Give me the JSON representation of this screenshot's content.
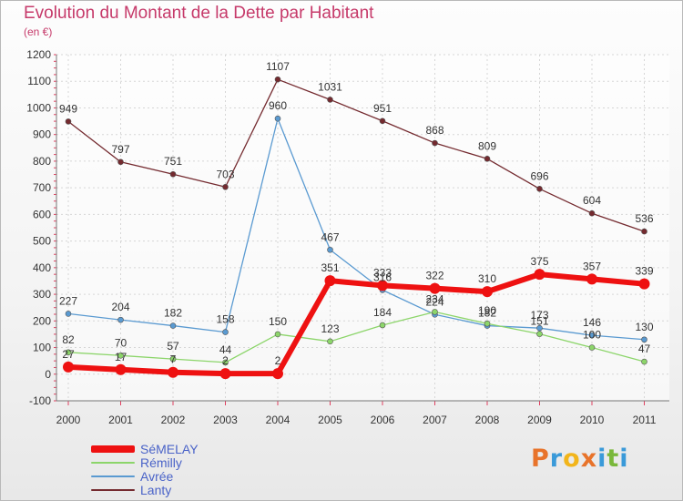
{
  "title": "Evolution du Montant de la Dette par Habitant",
  "subtitle": "(en €)",
  "logo": {
    "text": "Proxiti",
    "colors": [
      "#e8732a",
      "#3a9ad9",
      "#f2b51b",
      "#e8732a",
      "#3a9ad9",
      "#7ab83b",
      "#3a9ad9"
    ]
  },
  "chart_data": {
    "type": "line",
    "categories": [
      "2000",
      "2001",
      "2002",
      "2003",
      "2004",
      "2005",
      "2006",
      "2007",
      "2008",
      "2009",
      "2010",
      "2011"
    ],
    "ylim": [
      -100,
      1200
    ],
    "yticks": [
      -100,
      0,
      100,
      200,
      300,
      400,
      500,
      600,
      700,
      800,
      900,
      1000,
      1100,
      1200
    ],
    "grid": true,
    "legend_position": "bottom-left",
    "series": [
      {
        "name": "Lanty",
        "color": "#742a2f",
        "values": [
          949,
          797,
          751,
          703,
          1107,
          1031,
          951,
          868,
          809,
          696,
          604,
          536
        ]
      },
      {
        "name": "Avrée",
        "color": "#5a9ad1",
        "values": [
          227,
          204,
          182,
          158,
          960,
          467,
          316,
          224,
          182,
          173,
          146,
          130
        ]
      },
      {
        "name": "Rémilly",
        "color": "#8cd56a",
        "values": [
          82,
          70,
          57,
          44,
          150,
          123,
          184,
          234,
          190,
          151,
          100,
          47
        ]
      },
      {
        "name": "SéMELAY",
        "color": "#ee1111",
        "values": [
          27,
          17,
          7,
          2,
          2,
          351,
          333,
          322,
          310,
          375,
          357,
          339
        ]
      }
    ]
  }
}
